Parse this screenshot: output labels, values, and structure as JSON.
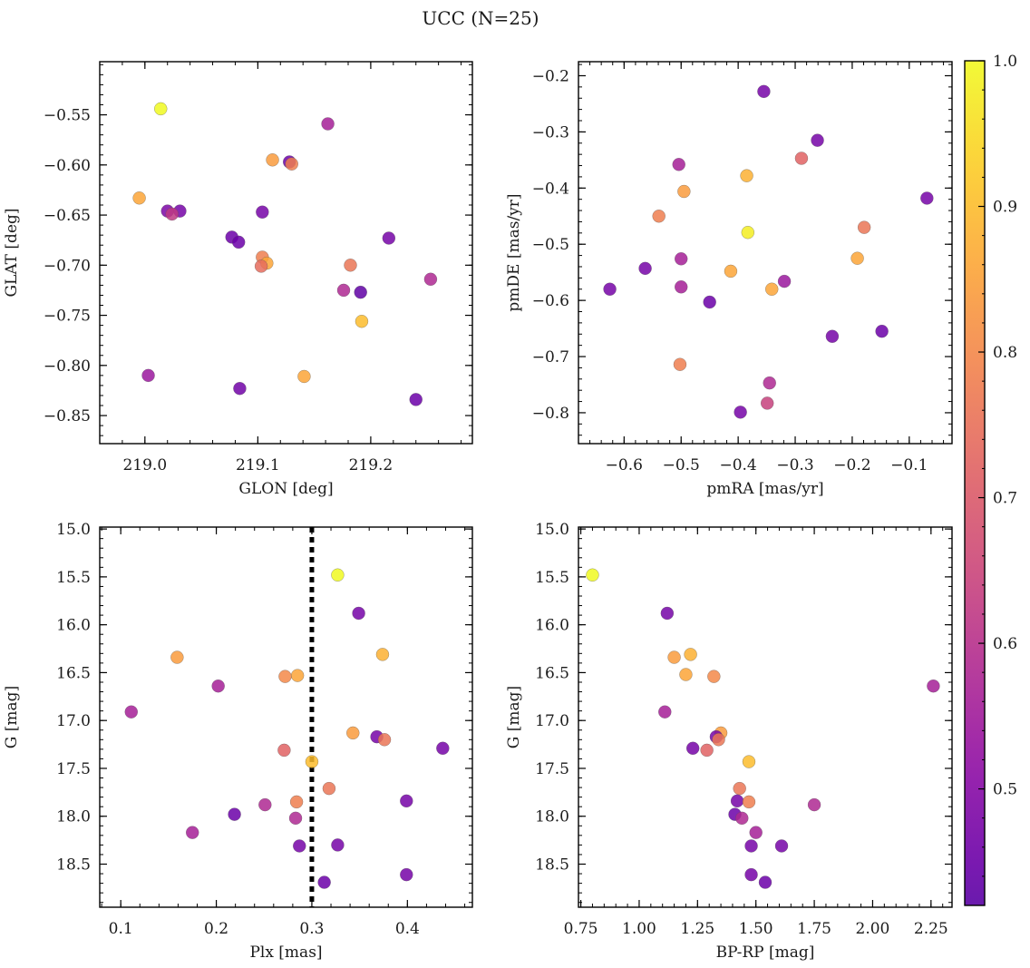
{
  "figure": {
    "title": "UCC (N=25)"
  },
  "colorbar": {
    "cmap": "plasma",
    "range": [
      0.42,
      1.0
    ],
    "ticks": [
      "0.5",
      "0.6",
      "0.7",
      "0.8",
      "0.9",
      "1.0"
    ]
  },
  "chart_data": [
    {
      "type": "scatter",
      "xlabel": "GLON [deg]",
      "ylabel": "GLAT [deg]",
      "xlim": [
        218.96,
        219.29
      ],
      "ylim": [
        -0.878,
        -0.497
      ],
      "invert_y": false,
      "xticks": [
        219.0,
        219.1,
        219.2
      ],
      "xticklabels": [
        "219.0",
        "219.1",
        "219.2"
      ],
      "yticks": [
        -0.55,
        -0.6,
        -0.65,
        -0.7,
        -0.75,
        -0.8,
        -0.85
      ],
      "yticklabels": [
        "−0.55",
        "−0.60",
        "−0.65",
        "−0.70",
        "−0.75",
        "−0.80",
        "−0.85"
      ],
      "points": [
        {
          "x": 219.014,
          "y": -0.544,
          "c": 1.0
        },
        {
          "x": 219.162,
          "y": -0.559,
          "c": 0.56
        },
        {
          "x": 219.113,
          "y": -0.595,
          "c": 0.84
        },
        {
          "x": 219.128,
          "y": -0.597,
          "c": 0.45
        },
        {
          "x": 219.13,
          "y": -0.599,
          "c": 0.78
        },
        {
          "x": 218.995,
          "y": -0.633,
          "c": 0.86
        },
        {
          "x": 219.02,
          "y": -0.646,
          "c": 0.48
        },
        {
          "x": 219.031,
          "y": -0.646,
          "c": 0.47
        },
        {
          "x": 219.024,
          "y": -0.649,
          "c": 0.62
        },
        {
          "x": 219.104,
          "y": -0.647,
          "c": 0.47
        },
        {
          "x": 219.077,
          "y": -0.672,
          "c": 0.45
        },
        {
          "x": 219.083,
          "y": -0.677,
          "c": 0.45
        },
        {
          "x": 219.216,
          "y": -0.673,
          "c": 0.47
        },
        {
          "x": 219.104,
          "y": -0.692,
          "c": 0.78
        },
        {
          "x": 219.108,
          "y": -0.698,
          "c": 0.86
        },
        {
          "x": 219.103,
          "y": -0.701,
          "c": 0.74
        },
        {
          "x": 219.182,
          "y": -0.7,
          "c": 0.76
        },
        {
          "x": 219.253,
          "y": -0.714,
          "c": 0.58
        },
        {
          "x": 219.176,
          "y": -0.725,
          "c": 0.58
        },
        {
          "x": 219.191,
          "y": -0.727,
          "c": 0.43
        },
        {
          "x": 219.192,
          "y": -0.756,
          "c": 0.9
        },
        {
          "x": 219.003,
          "y": -0.81,
          "c": 0.54
        },
        {
          "x": 219.141,
          "y": -0.811,
          "c": 0.86
        },
        {
          "x": 219.084,
          "y": -0.823,
          "c": 0.46
        },
        {
          "x": 219.24,
          "y": -0.834,
          "c": 0.45
        }
      ]
    },
    {
      "type": "scatter",
      "xlabel": "pmRA [mas/yr]",
      "ylabel": "pmDE [mas/yr]",
      "xlim": [
        -0.68,
        -0.025
      ],
      "ylim": [
        -0.855,
        -0.175
      ],
      "invert_y": false,
      "xticks": [
        -0.6,
        -0.5,
        -0.4,
        -0.3,
        -0.2,
        -0.1
      ],
      "xticklabels": [
        "−0.6",
        "−0.5",
        "−0.4",
        "−0.3",
        "−0.2",
        "−0.1"
      ],
      "yticks": [
        -0.2,
        -0.3,
        -0.4,
        -0.5,
        -0.6,
        -0.7,
        -0.8
      ],
      "yticklabels": [
        "−0.2",
        "−0.3",
        "−0.4",
        "−0.5",
        "−0.6",
        "−0.7",
        "−0.8"
      ],
      "points": [
        {
          "x": -0.355,
          "y": -0.228,
          "c": 0.47
        },
        {
          "x": -0.261,
          "y": -0.315,
          "c": 0.47
        },
        {
          "x": -0.289,
          "y": -0.347,
          "c": 0.72
        },
        {
          "x": -0.504,
          "y": -0.358,
          "c": 0.56
        },
        {
          "x": -0.385,
          "y": -0.378,
          "c": 0.88
        },
        {
          "x": -0.495,
          "y": -0.406,
          "c": 0.84
        },
        {
          "x": -0.069,
          "y": -0.418,
          "c": 0.47
        },
        {
          "x": -0.539,
          "y": -0.45,
          "c": 0.78
        },
        {
          "x": -0.179,
          "y": -0.47,
          "c": 0.76
        },
        {
          "x": -0.383,
          "y": -0.479,
          "c": 0.98
        },
        {
          "x": -0.5,
          "y": -0.526,
          "c": 0.56
        },
        {
          "x": -0.191,
          "y": -0.525,
          "c": 0.86
        },
        {
          "x": -0.563,
          "y": -0.543,
          "c": 0.47
        },
        {
          "x": -0.413,
          "y": -0.548,
          "c": 0.86
        },
        {
          "x": -0.319,
          "y": -0.566,
          "c": 0.54
        },
        {
          "x": -0.5,
          "y": -0.576,
          "c": 0.56
        },
        {
          "x": -0.625,
          "y": -0.58,
          "c": 0.47
        },
        {
          "x": -0.341,
          "y": -0.58,
          "c": 0.86
        },
        {
          "x": -0.45,
          "y": -0.603,
          "c": 0.45
        },
        {
          "x": -0.148,
          "y": -0.655,
          "c": 0.45
        },
        {
          "x": -0.235,
          "y": -0.664,
          "c": 0.47
        },
        {
          "x": -0.502,
          "y": -0.714,
          "c": 0.78
        },
        {
          "x": -0.345,
          "y": -0.747,
          "c": 0.58
        },
        {
          "x": -0.349,
          "y": -0.783,
          "c": 0.64
        },
        {
          "x": -0.396,
          "y": -0.799,
          "c": 0.47
        }
      ]
    },
    {
      "type": "scatter",
      "xlabel": "Plx [mas]",
      "ylabel": "G [mag]",
      "xlim": [
        0.078,
        0.468
      ],
      "ylim": [
        18.95,
        14.98
      ],
      "invert_y": true,
      "vline": {
        "x": 0.3,
        "style": "dotted",
        "color": "#000000"
      },
      "xticks": [
        0.1,
        0.2,
        0.3,
        0.4
      ],
      "xticklabels": [
        "0.1",
        "0.2",
        "0.3",
        "0.4"
      ],
      "yticks": [
        15.0,
        15.5,
        16.0,
        16.5,
        17.0,
        17.5,
        18.0,
        18.5
      ],
      "yticklabels": [
        "15.0",
        "15.5",
        "16.0",
        "16.5",
        "17.0",
        "17.5",
        "18.0",
        "18.5"
      ],
      "points": [
        {
          "x": 0.327,
          "y": 15.48,
          "c": 1.0
        },
        {
          "x": 0.349,
          "y": 15.88,
          "c": 0.47
        },
        {
          "x": 0.374,
          "y": 16.31,
          "c": 0.88
        },
        {
          "x": 0.159,
          "y": 16.34,
          "c": 0.84
        },
        {
          "x": 0.272,
          "y": 16.54,
          "c": 0.8
        },
        {
          "x": 0.285,
          "y": 16.53,
          "c": 0.86
        },
        {
          "x": 0.202,
          "y": 16.64,
          "c": 0.56
        },
        {
          "x": 0.111,
          "y": 16.91,
          "c": 0.56
        },
        {
          "x": 0.343,
          "y": 17.13,
          "c": 0.84
        },
        {
          "x": 0.368,
          "y": 17.17,
          "c": 0.47
        },
        {
          "x": 0.376,
          "y": 17.2,
          "c": 0.76
        },
        {
          "x": 0.437,
          "y": 17.29,
          "c": 0.47
        },
        {
          "x": 0.271,
          "y": 17.31,
          "c": 0.72
        },
        {
          "x": 0.3,
          "y": 17.43,
          "c": 0.9
        },
        {
          "x": 0.318,
          "y": 17.71,
          "c": 0.76
        },
        {
          "x": 0.399,
          "y": 17.84,
          "c": 0.47
        },
        {
          "x": 0.284,
          "y": 17.85,
          "c": 0.78
        },
        {
          "x": 0.251,
          "y": 17.88,
          "c": 0.58
        },
        {
          "x": 0.219,
          "y": 17.98,
          "c": 0.45
        },
        {
          "x": 0.283,
          "y": 18.02,
          "c": 0.58
        },
        {
          "x": 0.175,
          "y": 18.17,
          "c": 0.56
        },
        {
          "x": 0.287,
          "y": 18.31,
          "c": 0.47
        },
        {
          "x": 0.327,
          "y": 18.3,
          "c": 0.47
        },
        {
          "x": 0.399,
          "y": 18.61,
          "c": 0.47
        },
        {
          "x": 0.313,
          "y": 18.69,
          "c": 0.45
        }
      ]
    },
    {
      "type": "scatter",
      "xlabel": "BP-RP [mag]",
      "ylabel": "G [mag]",
      "xlim": [
        0.74,
        2.34
      ],
      "ylim": [
        18.95,
        14.98
      ],
      "invert_y": true,
      "xticks": [
        0.75,
        1.0,
        1.25,
        1.5,
        1.75,
        2.0,
        2.25
      ],
      "xticklabels": [
        "0.75",
        "1.00",
        "1.25",
        "1.50",
        "1.75",
        "2.00",
        "2.25"
      ],
      "yticks": [
        15.0,
        15.5,
        16.0,
        16.5,
        17.0,
        17.5,
        18.0,
        18.5
      ],
      "yticklabels": [
        "15.0",
        "15.5",
        "16.0",
        "16.5",
        "17.0",
        "17.5",
        "18.0",
        "18.5"
      ],
      "points": [
        {
          "x": 0.8,
          "y": 15.48,
          "c": 1.0
        },
        {
          "x": 1.12,
          "y": 15.88,
          "c": 0.47
        },
        {
          "x": 1.22,
          "y": 16.31,
          "c": 0.88
        },
        {
          "x": 1.15,
          "y": 16.34,
          "c": 0.84
        },
        {
          "x": 1.2,
          "y": 16.52,
          "c": 0.86
        },
        {
          "x": 1.32,
          "y": 16.54,
          "c": 0.8
        },
        {
          "x": 2.26,
          "y": 16.64,
          "c": 0.56
        },
        {
          "x": 1.11,
          "y": 16.91,
          "c": 0.56
        },
        {
          "x": 1.35,
          "y": 17.13,
          "c": 0.84
        },
        {
          "x": 1.33,
          "y": 17.17,
          "c": 0.47
        },
        {
          "x": 1.34,
          "y": 17.2,
          "c": 0.76
        },
        {
          "x": 1.23,
          "y": 17.29,
          "c": 0.47
        },
        {
          "x": 1.29,
          "y": 17.31,
          "c": 0.72
        },
        {
          "x": 1.47,
          "y": 17.43,
          "c": 0.9
        },
        {
          "x": 1.43,
          "y": 17.71,
          "c": 0.76
        },
        {
          "x": 1.42,
          "y": 17.84,
          "c": 0.47
        },
        {
          "x": 1.47,
          "y": 17.85,
          "c": 0.78
        },
        {
          "x": 1.75,
          "y": 17.88,
          "c": 0.58
        },
        {
          "x": 1.41,
          "y": 17.98,
          "c": 0.45
        },
        {
          "x": 1.44,
          "y": 18.02,
          "c": 0.58
        },
        {
          "x": 1.5,
          "y": 18.17,
          "c": 0.56
        },
        {
          "x": 1.48,
          "y": 18.31,
          "c": 0.47
        },
        {
          "x": 1.61,
          "y": 18.31,
          "c": 0.47
        },
        {
          "x": 1.48,
          "y": 18.61,
          "c": 0.47
        },
        {
          "x": 1.54,
          "y": 18.69,
          "c": 0.45
        }
      ]
    }
  ]
}
